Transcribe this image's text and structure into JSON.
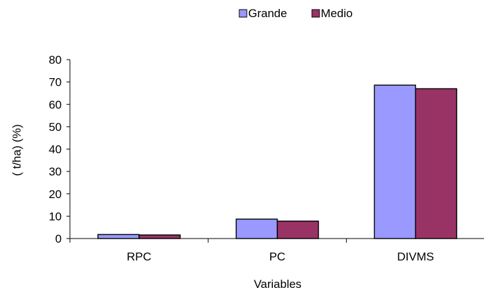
{
  "chart_data": {
    "type": "bar",
    "title": "",
    "xlabel": "Variables",
    "ylabel": "( t/ha) (%)",
    "categories": [
      "RPC",
      "PC",
      "DIVMS"
    ],
    "series": [
      {
        "name": "Grande",
        "values": [
          1.8,
          8.7,
          68.6
        ],
        "color": "#9999ff"
      },
      {
        "name": "Medio",
        "values": [
          1.6,
          7.8,
          67.0
        ],
        "color": "#993366"
      }
    ],
    "ylim": [
      0,
      80
    ],
    "yticks": [
      "0",
      "10",
      "20",
      "30",
      "40",
      "50",
      "60",
      "70",
      "80"
    ],
    "grid": false,
    "legend_position": "top"
  }
}
